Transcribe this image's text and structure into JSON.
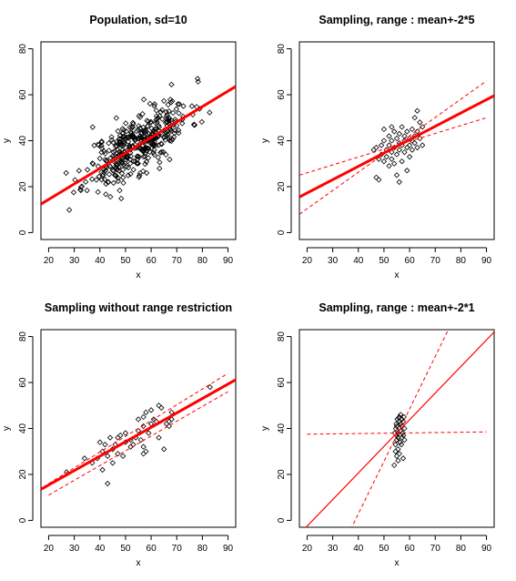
{
  "chart_data": [
    {
      "type": "scatter",
      "title": "Population, sd=10",
      "xlabel": "x",
      "ylabel": "y",
      "xlim": [
        17,
        93
      ],
      "ylim": [
        -3,
        83
      ],
      "xticks": [
        "20",
        "30",
        "40",
        "50",
        "60",
        "70",
        "80",
        "90"
      ],
      "yticks": [
        "0",
        "20",
        "40",
        "60",
        "80"
      ],
      "grid": false,
      "legend": "none",
      "colors": {
        "points": "#000000",
        "fit": "#ff0000"
      },
      "point_cloud": {
        "n": 400,
        "x_mean": 55,
        "x_sd": 10,
        "intercept": 2.5,
        "slope": 0.66,
        "noise_sd": 6.5,
        "seed": 11
      },
      "lines": [
        {
          "style": "solid-thick",
          "points": [
            [
              17,
              12.4
            ],
            [
              93,
              63.6
            ]
          ]
        }
      ]
    },
    {
      "type": "scatter",
      "title": "Sampling, range : mean+-2*5",
      "xlabel": "x",
      "ylabel": "y",
      "xlim": [
        17,
        93
      ],
      "ylim": [
        -3,
        83
      ],
      "xticks": [
        "20",
        "30",
        "40",
        "50",
        "60",
        "70",
        "80",
        "90"
      ],
      "yticks": [
        "0",
        "20",
        "40",
        "60",
        "80"
      ],
      "grid": false,
      "legend": "none",
      "colors": {
        "points": "#000000",
        "fit": "#ff0000"
      },
      "points": [
        [
          46,
          36
        ],
        [
          47,
          37
        ],
        [
          47,
          24
        ],
        [
          48,
          23
        ],
        [
          48,
          32
        ],
        [
          49,
          38
        ],
        [
          49,
          34
        ],
        [
          50,
          31
        ],
        [
          50,
          40
        ],
        [
          51,
          33
        ],
        [
          51,
          36
        ],
        [
          52,
          29
        ],
        [
          52,
          38
        ],
        [
          52,
          42
        ],
        [
          53,
          32
        ],
        [
          53,
          35
        ],
        [
          53,
          40
        ],
        [
          54,
          44
        ],
        [
          54,
          30
        ],
        [
          54,
          37
        ],
        [
          55,
          25
        ],
        [
          55,
          34
        ],
        [
          55,
          41
        ],
        [
          56,
          36
        ],
        [
          56,
          43
        ],
        [
          56,
          39
        ],
        [
          57,
          31
        ],
        [
          57,
          38
        ],
        [
          57,
          46
        ],
        [
          58,
          35
        ],
        [
          58,
          42
        ],
        [
          58,
          40
        ],
        [
          59,
          37
        ],
        [
          59,
          44
        ],
        [
          60,
          33
        ],
        [
          60,
          41
        ],
        [
          60,
          38
        ],
        [
          61,
          45
        ],
        [
          61,
          40
        ],
        [
          61,
          36
        ],
        [
          62,
          42
        ],
        [
          62,
          39
        ],
        [
          62,
          50
        ],
        [
          63,
          44
        ],
        [
          63,
          37
        ],
        [
          63,
          53
        ],
        [
          64,
          48
        ],
        [
          64,
          41
        ],
        [
          65,
          46
        ],
        [
          65,
          38
        ],
        [
          56,
          22
        ],
        [
          50,
          45
        ],
        [
          59,
          27
        ],
        [
          53,
          46
        ]
      ],
      "lines": [
        {
          "style": "solid-thick",
          "points": [
            [
              17,
              15.5
            ],
            [
              93,
              59.6
            ]
          ]
        },
        {
          "style": "dashed",
          "points": [
            [
              17,
              25
            ],
            [
              90,
              50
            ]
          ]
        },
        {
          "style": "dashed",
          "points": [
            [
              17,
              8
            ],
            [
              90,
              66
            ]
          ]
        }
      ]
    },
    {
      "type": "scatter",
      "title": "Sampling without range restriction",
      "xlabel": "x",
      "ylabel": "y",
      "xlim": [
        17,
        93
      ],
      "ylim": [
        -3,
        83
      ],
      "xticks": [
        "20",
        "30",
        "40",
        "50",
        "60",
        "70",
        "80",
        "90"
      ],
      "yticks": [
        "0",
        "20",
        "40",
        "60",
        "80"
      ],
      "grid": false,
      "legend": "none",
      "colors": {
        "points": "#000000",
        "fit": "#ff0000"
      },
      "points": [
        [
          27,
          21
        ],
        [
          37,
          25
        ],
        [
          39,
          27
        ],
        [
          40,
          34
        ],
        [
          41,
          30
        ],
        [
          41,
          22
        ],
        [
          42,
          33
        ],
        [
          43,
          28
        ],
        [
          43,
          16
        ],
        [
          44,
          36
        ],
        [
          45,
          31
        ],
        [
          45,
          25
        ],
        [
          46,
          33
        ],
        [
          47,
          29
        ],
        [
          48,
          37
        ],
        [
          49,
          28
        ],
        [
          50,
          34
        ],
        [
          50,
          38
        ],
        [
          52,
          32
        ],
        [
          52,
          35
        ],
        [
          53,
          33
        ],
        [
          54,
          36
        ],
        [
          55,
          39
        ],
        [
          56,
          35
        ],
        [
          57,
          32
        ],
        [
          57,
          41
        ],
        [
          57,
          45
        ],
        [
          58,
          47
        ],
        [
          58,
          30
        ],
        [
          59,
          38
        ],
        [
          60,
          48
        ],
        [
          60,
          42
        ],
        [
          61,
          44
        ],
        [
          62,
          43
        ],
        [
          63,
          50
        ],
        [
          63,
          36
        ],
        [
          64,
          49
        ],
        [
          65,
          31
        ],
        [
          66,
          42
        ],
        [
          67,
          41
        ],
        [
          67,
          43
        ],
        [
          68,
          47
        ],
        [
          68,
          44
        ],
        [
          57,
          29
        ],
        [
          55,
          44
        ],
        [
          47,
          36
        ],
        [
          34,
          27
        ],
        [
          83,
          58
        ]
      ],
      "lines": [
        {
          "style": "solid-thick",
          "points": [
            [
              17,
              13.5
            ],
            [
              93,
              61.2
            ]
          ]
        },
        {
          "style": "dashed",
          "points": [
            [
              20,
              11
            ],
            [
              90,
              56
            ]
          ]
        },
        {
          "style": "dashed",
          "points": [
            [
              20,
              16
            ],
            [
              90,
              64
            ]
          ]
        }
      ]
    },
    {
      "type": "scatter",
      "title": "Sampling, range : mean+-2*1",
      "xlabel": "x",
      "ylabel": "y",
      "xlim": [
        17,
        93
      ],
      "ylim": [
        -3,
        83
      ],
      "xticks": [
        "20",
        "30",
        "40",
        "50",
        "60",
        "70",
        "80",
        "90"
      ],
      "yticks": [
        "0",
        "20",
        "40",
        "60",
        "80"
      ],
      "grid": false,
      "legend": "none",
      "colors": {
        "points": "#000000",
        "fit": "#ff0000"
      },
      "points": [
        [
          54,
          24
        ],
        [
          54.5,
          30
        ],
        [
          54.5,
          33
        ],
        [
          55,
          28
        ],
        [
          55,
          35
        ],
        [
          55,
          37
        ],
        [
          55,
          41
        ],
        [
          55.2,
          44
        ],
        [
          55.5,
          26
        ],
        [
          55.5,
          31
        ],
        [
          55.5,
          36
        ],
        [
          55.5,
          38
        ],
        [
          56,
          40
        ],
        [
          56,
          43
        ],
        [
          56,
          45
        ],
        [
          56,
          29
        ],
        [
          56.3,
          34
        ],
        [
          56.5,
          42
        ],
        [
          56.5,
          39
        ],
        [
          56.5,
          46
        ],
        [
          57,
          36
        ],
        [
          57,
          44
        ],
        [
          57,
          41
        ],
        [
          57.3,
          38
        ],
        [
          57.5,
          43
        ],
        [
          57.5,
          27
        ],
        [
          57.8,
          45
        ],
        [
          58,
          40
        ],
        [
          58,
          35
        ],
        [
          54.8,
          42
        ],
        [
          54.2,
          38
        ],
        [
          56.8,
          33
        ],
        [
          57.6,
          37
        ],
        [
          55.8,
          44.5
        ],
        [
          54.6,
          40
        ]
      ],
      "lines": [
        {
          "style": "solid",
          "points": [
            [
              17,
              -6
            ],
            [
              93,
              82
            ]
          ]
        },
        {
          "style": "dashed",
          "points": [
            [
              20,
              37.5
            ],
            [
              90,
              38.5
            ]
          ]
        },
        {
          "style": "dashed",
          "points": [
            [
              37,
              -4
            ],
            [
              76,
              85
            ]
          ]
        }
      ]
    }
  ]
}
